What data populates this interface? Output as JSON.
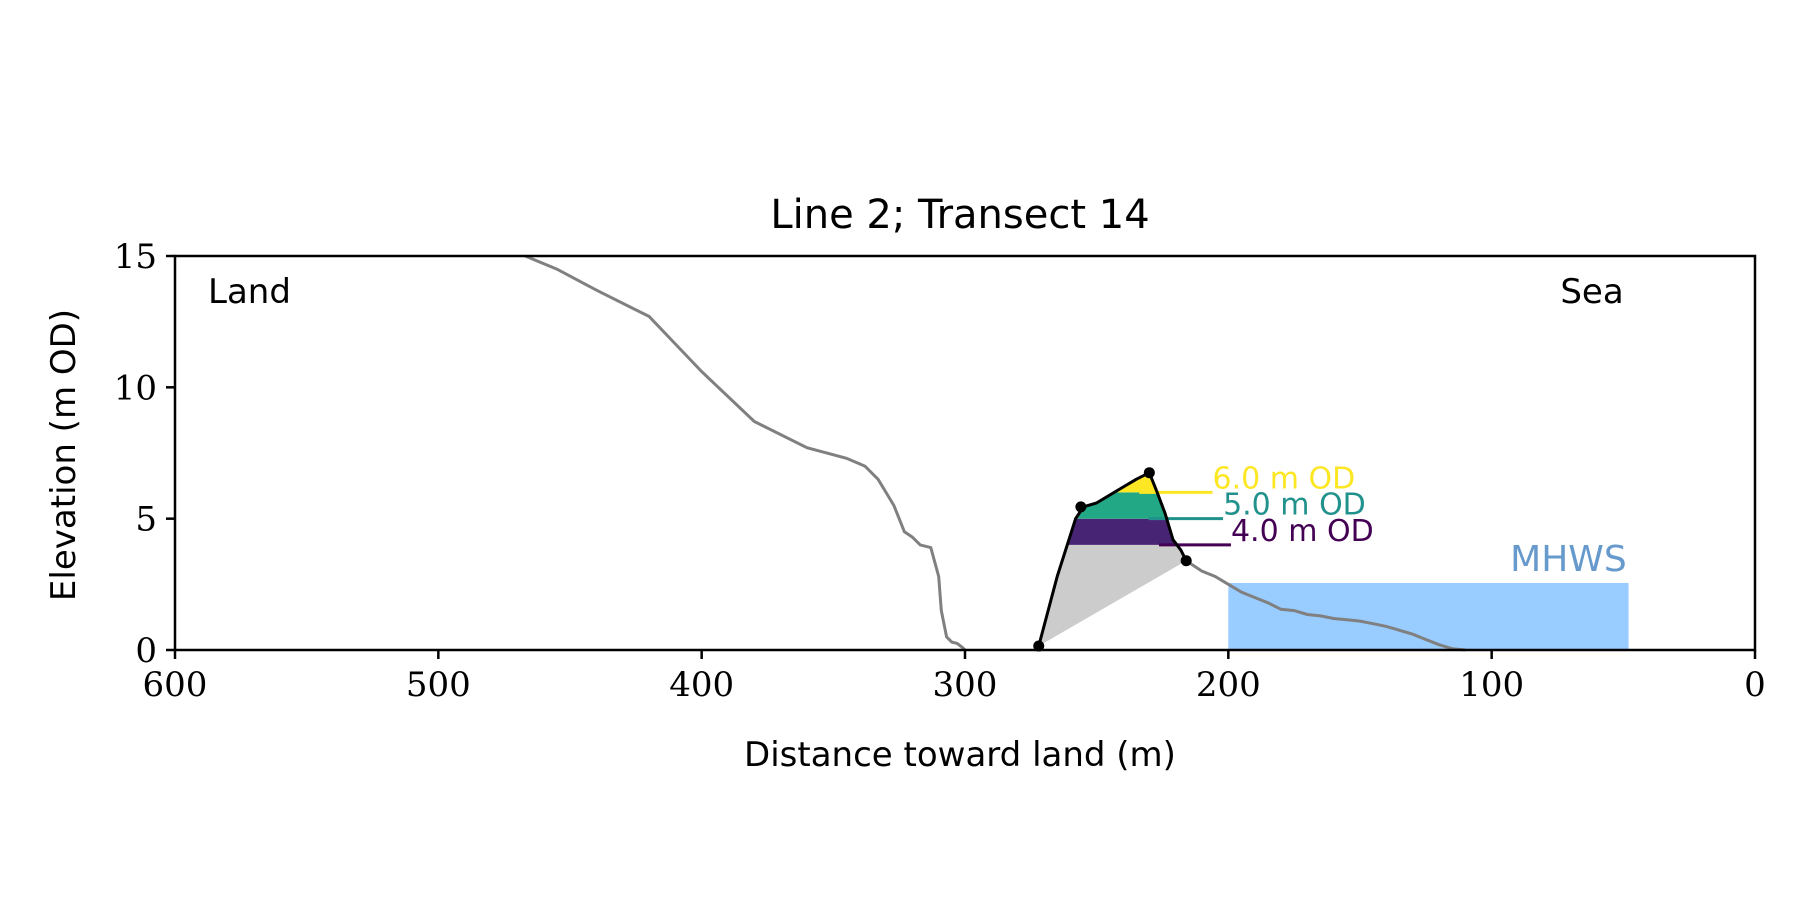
{
  "chart_data": {
    "type": "area",
    "title": "Line 2; Transect 14",
    "xlabel": "Distance toward land (m)",
    "ylabel": "Elevation (m OD)",
    "xlim": [
      600,
      0
    ],
    "ylim": [
      0,
      15
    ],
    "xticks": [
      600,
      500,
      400,
      300,
      200,
      100,
      0
    ],
    "yticks": [
      0,
      5,
      10,
      15
    ],
    "grid": false,
    "corner_labels": {
      "left": "Land",
      "right": "Sea"
    },
    "colors": {
      "profile": "#808080",
      "dune_outline": "#000000",
      "dune_base_fill": "#cccccc",
      "mhws_fill": "#99ccff",
      "mhws_text": "#6699cc"
    },
    "profile": {
      "x": [
        467,
        455,
        440,
        420,
        400,
        380,
        360,
        345,
        338,
        333,
        330,
        327,
        323,
        320,
        317,
        313,
        310,
        309,
        307,
        305,
        303,
        301,
        300
      ],
      "y": [
        15.0,
        14.5,
        13.7,
        12.7,
        10.6,
        8.7,
        7.7,
        7.3,
        7.0,
        6.5,
        6.0,
        5.5,
        4.5,
        4.3,
        4.0,
        3.9,
        2.8,
        1.5,
        0.5,
        0.3,
        0.25,
        0.1,
        0.0
      ]
    },
    "seaward_profile": {
      "x": [
        216,
        210,
        205,
        200,
        195,
        190,
        185,
        180,
        175,
        170,
        165,
        160,
        155,
        150,
        145,
        140,
        135,
        130,
        125,
        120,
        115,
        110
      ],
      "y": [
        3.4,
        3.0,
        2.8,
        2.5,
        2.2,
        2.0,
        1.8,
        1.55,
        1.5,
        1.35,
        1.3,
        1.2,
        1.15,
        1.1,
        1.0,
        0.9,
        0.75,
        0.6,
        0.4,
        0.2,
        0.05,
        0.0
      ]
    },
    "dune": {
      "outline": {
        "x": [
          272,
          265,
          258,
          255,
          250,
          245,
          240,
          235,
          230,
          227,
          224,
          221,
          218,
          216
        ],
        "y": [
          0.15,
          2.8,
          5.0,
          5.45,
          5.6,
          5.9,
          6.2,
          6.5,
          6.75,
          6.0,
          5.2,
          4.2,
          3.8,
          3.4
        ]
      },
      "points": [
        {
          "x": 272,
          "y": 0.15
        },
        {
          "x": 256,
          "y": 5.45
        },
        {
          "x": 230,
          "y": 6.75
        },
        {
          "x": 216,
          "y": 3.4
        }
      ],
      "levels": [
        {
          "label": "6.0 m OD",
          "value": 6.0,
          "color": "#fde725",
          "line_end_x": 206
        },
        {
          "label": "5.0 m OD",
          "value": 5.0,
          "color": "#21918c",
          "line_end_x": 202
        },
        {
          "label": "4.0 m OD",
          "value": 4.0,
          "color": "#440154",
          "line_end_x": 199
        }
      ],
      "band_colors": [
        "#fde725",
        "#22a884",
        "#482475"
      ]
    },
    "mhws": {
      "label": "MHWS",
      "elevation": 2.55,
      "x_range": [
        200,
        48
      ]
    }
  }
}
